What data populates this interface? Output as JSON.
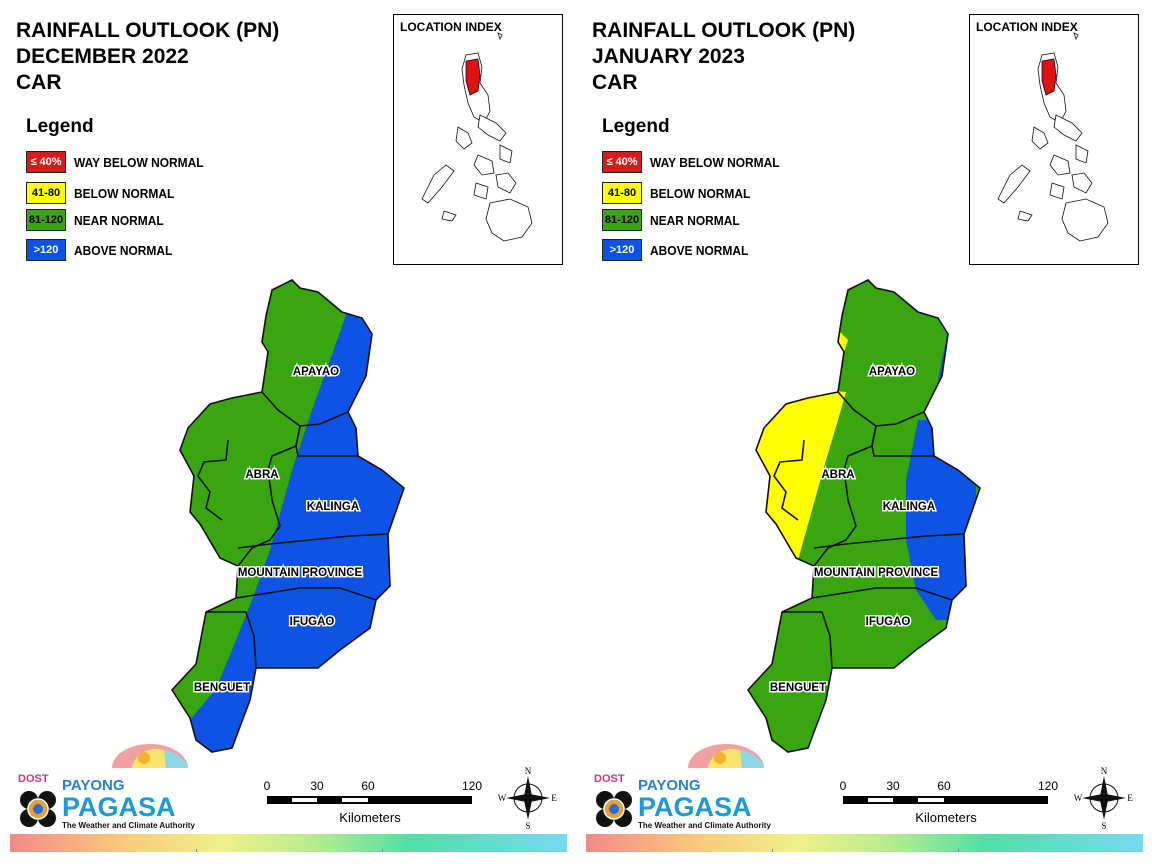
{
  "legend": {
    "title": "Legend",
    "items": [
      {
        "code": "≤ 40%",
        "label": "WAY BELOW NORMAL",
        "color": "#d91a1a",
        "text_color": "#ffffff"
      },
      {
        "code": "41-80",
        "label": "BELOW NORMAL",
        "color": "#ffff00",
        "text_color": "#000000"
      },
      {
        "code": "81-120",
        "label": "NEAR NORMAL",
        "color": "#3aa60f",
        "text_color": "#000000"
      },
      {
        "code": ">120",
        "label": "ABOVE NORMAL",
        "color": "#0e52e6",
        "text_color": "#ffffff"
      }
    ]
  },
  "inset_title": "LOCATION INDEX",
  "provinces": [
    "APAYAO",
    "ABRA",
    "KALINGA",
    "MOUNTAIN PROVINCE",
    "IFUGAO",
    "BENGUET"
  ],
  "scale": {
    "ticks": [
      "0",
      "30",
      "60",
      "120"
    ],
    "unit": "Kilometers"
  },
  "compass": {
    "n": "N",
    "s": "S",
    "e": "E",
    "w": "W"
  },
  "logo": {
    "dost": "DOST",
    "payong": "PAYONG",
    "pagasa": "PAGASA",
    "tagline": "The Weather and Climate Authority"
  },
  "panels": [
    {
      "title": [
        "RAINFALL OUTLOOK (PN)",
        "DECEMBER 2022",
        "CAR"
      ],
      "outlook": {
        "APAYAO": [
          "NEAR NORMAL",
          "ABOVE NORMAL"
        ],
        "ABRA": [
          "NEAR NORMAL"
        ],
        "KALINGA": [
          "NEAR NORMAL",
          "ABOVE NORMAL"
        ],
        "MOUNTAIN PROVINCE": [
          "NEAR NORMAL",
          "ABOVE NORMAL"
        ],
        "IFUGAO": [
          "NEAR NORMAL",
          "ABOVE NORMAL"
        ],
        "BENGUET": [
          "NEAR NORMAL",
          "ABOVE NORMAL"
        ]
      }
    },
    {
      "title": [
        "RAINFALL OUTLOOK (PN)",
        "JANUARY 2023",
        "CAR"
      ],
      "outlook": {
        "APAYAO": [
          "NEAR NORMAL",
          "BELOW NORMAL",
          "ABOVE NORMAL"
        ],
        "ABRA": [
          "BELOW NORMAL",
          "NEAR NORMAL"
        ],
        "KALINGA": [
          "NEAR NORMAL",
          "ABOVE NORMAL"
        ],
        "MOUNTAIN PROVINCE": [
          "NEAR NORMAL",
          "ABOVE NORMAL"
        ],
        "IFUGAO": [
          "NEAR NORMAL",
          "ABOVE NORMAL"
        ],
        "BENGUET": [
          "NEAR NORMAL"
        ]
      }
    }
  ],
  "colors": {
    "border": "#1a1a1a",
    "highlight": "#e01010"
  }
}
